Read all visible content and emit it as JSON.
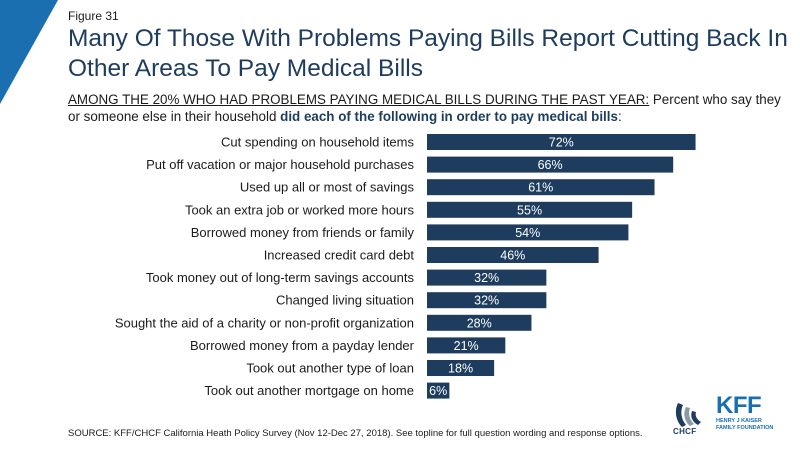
{
  "figure_label": "Figure 31",
  "title": "Many Of Those With Problems Paying Bills Report Cutting Back In Other Areas To Pay Medical Bills",
  "subtitle": {
    "part1": "AMONG THE 20% WHO HAD PROBLEMS PAYING MEDICAL BILLS DURING THE PAST YEAR:",
    "part2": " Percent who say they or someone else in their household ",
    "part3": "did each of the following in order to pay medical bills",
    "part4": ":"
  },
  "source": "SOURCE: KFF/CHCF California Heath Policy Survey (Nov 12-Dec 27, 2018). See topline for full question wording and response options.",
  "logos": {
    "chcf": "CHCF",
    "kff": "KFF",
    "kff_sub1": "HENRY J KAISER",
    "kff_sub2": "FAMILY FOUNDATION"
  },
  "colors": {
    "bar": "#1d3c5e",
    "corner": "#1a6fb0",
    "title": "#1d3c5e",
    "brand_kff": "#1a6fb0"
  },
  "chart_data": {
    "type": "bar",
    "orientation": "horizontal",
    "categories": [
      "Cut spending on household items",
      "Put off vacation or major household purchases",
      "Used up all or most of savings",
      "Took an extra job or worked more hours",
      "Borrowed money from friends or family",
      "Increased credit card debt",
      "Took money out of long-term savings accounts",
      "Changed living situation",
      "Sought the aid of a charity or non-profit organization",
      "Borrowed money from a payday lender",
      "Took out another type of loan",
      "Took out another mortgage on home"
    ],
    "values": [
      72,
      66,
      61,
      55,
      54,
      46,
      32,
      32,
      28,
      21,
      18,
      6
    ],
    "value_labels": [
      "72%",
      "66%",
      "61%",
      "55%",
      "54%",
      "46%",
      "32%",
      "32%",
      "28%",
      "21%",
      "18%",
      "6%"
    ],
    "xlim": [
      0,
      100
    ],
    "grid": false,
    "legend": "none"
  }
}
